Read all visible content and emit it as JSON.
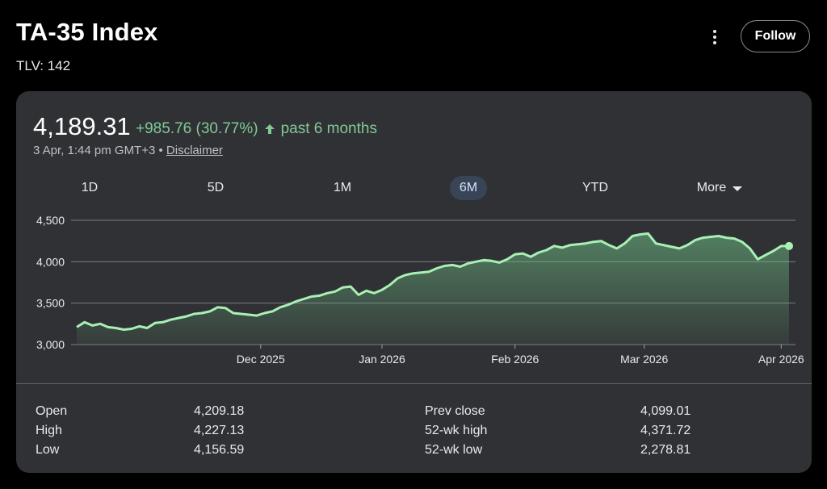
{
  "header": {
    "title": "TA-35 Index",
    "ticker": "TLV: 142",
    "follow_label": "Follow"
  },
  "quote": {
    "price": "4,189.31",
    "change": "+985.76 (30.77%)",
    "period": "past 6 months",
    "timestamp": "3 Apr, 1:44 pm GMT+3 •",
    "disclaimer": "Disclaimer"
  },
  "tabs": [
    "1D",
    "5D",
    "1M",
    "6M",
    "YTD",
    "More"
  ],
  "active_tab": "6M",
  "colors": {
    "accent_green": "#81c995",
    "line_green": "#a8f0b4",
    "card_bg": "#303134",
    "active_tab_bg": "#394457"
  },
  "stats": {
    "left": [
      {
        "label": "Open",
        "value": "4,209.18"
      },
      {
        "label": "High",
        "value": "4,227.13"
      },
      {
        "label": "Low",
        "value": "4,156.59"
      }
    ],
    "right": [
      {
        "label": "Prev close",
        "value": "4,099.01"
      },
      {
        "label": "52-wk high",
        "value": "4,371.72"
      },
      {
        "label": "52-wk low",
        "value": "2,278.81"
      }
    ]
  },
  "chart_data": {
    "type": "area",
    "title": "",
    "xlabel": "",
    "ylabel": "",
    "ylim": [
      3000,
      4500
    ],
    "yticks": [
      3000,
      3500,
      4000,
      4500
    ],
    "ytick_labels": [
      "3,000",
      "3,500",
      "4,000",
      "4,500"
    ],
    "x_range_days": [
      0,
      182
    ],
    "x_ticks": [
      {
        "day": 47,
        "label": "Dec 2025"
      },
      {
        "day": 78,
        "label": "Jan 2026"
      },
      {
        "day": 112,
        "label": "Feb 2026"
      },
      {
        "day": 145,
        "label": "Mar 2026"
      },
      {
        "day": 180,
        "label": "Apr 2026"
      }
    ],
    "grid": true,
    "series": [
      {
        "name": "TA-35",
        "x": [
          0,
          2,
          4,
          6,
          8,
          10,
          12,
          14,
          16,
          18,
          20,
          22,
          24,
          26,
          28,
          30,
          32,
          34,
          36,
          38,
          40,
          42,
          44,
          46,
          48,
          50,
          52,
          54,
          56,
          58,
          60,
          62,
          64,
          66,
          68,
          70,
          72,
          74,
          76,
          78,
          80,
          82,
          84,
          86,
          88,
          90,
          92,
          94,
          96,
          98,
          100,
          102,
          104,
          106,
          108,
          110,
          112,
          114,
          116,
          118,
          120,
          122,
          124,
          126,
          128,
          130,
          132,
          134,
          136,
          138,
          140,
          142,
          144,
          146,
          148,
          150,
          152,
          154,
          156,
          158,
          160,
          162,
          164,
          166,
          168,
          170,
          172,
          174,
          176,
          178,
          180,
          182
        ],
        "values": [
          3210,
          3270,
          3230,
          3250,
          3210,
          3200,
          3180,
          3190,
          3220,
          3200,
          3260,
          3270,
          3300,
          3320,
          3340,
          3370,
          3380,
          3400,
          3450,
          3440,
          3380,
          3370,
          3360,
          3350,
          3380,
          3400,
          3450,
          3480,
          3520,
          3550,
          3580,
          3590,
          3620,
          3640,
          3690,
          3700,
          3600,
          3650,
          3620,
          3660,
          3720,
          3800,
          3840,
          3860,
          3870,
          3880,
          3920,
          3950,
          3960,
          3940,
          3980,
          4000,
          4020,
          4010,
          3990,
          4030,
          4090,
          4100,
          4060,
          4110,
          4140,
          4190,
          4170,
          4200,
          4210,
          4220,
          4240,
          4250,
          4200,
          4160,
          4220,
          4310,
          4330,
          4340,
          4220,
          4200,
          4180,
          4160,
          4200,
          4260,
          4290,
          4300,
          4310,
          4290,
          4280,
          4240,
          4160,
          4030,
          4080,
          4130,
          4189,
          4189
        ]
      }
    ]
  }
}
